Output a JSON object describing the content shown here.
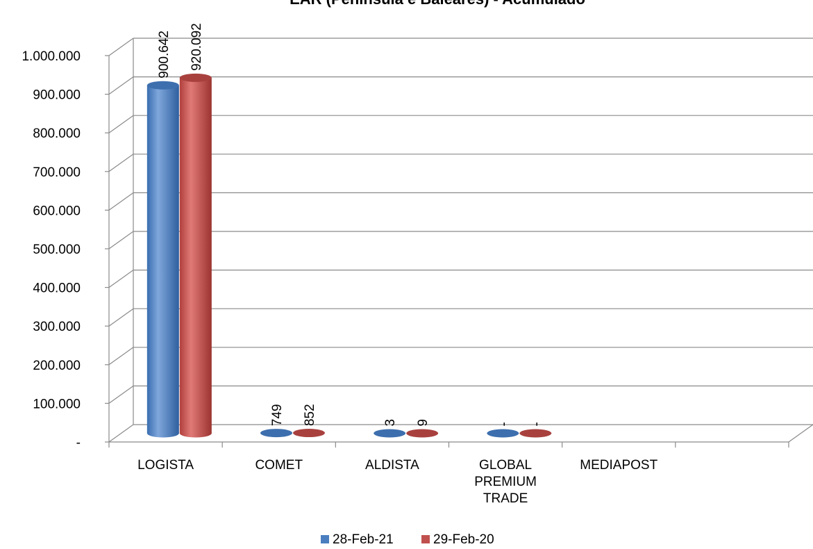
{
  "chart_data": {
    "type": "bar",
    "title": "EAR (Peninsula e Baleares) - Acumulado",
    "xlabel": "",
    "ylabel": "",
    "ylim": [
      0,
      1000000
    ],
    "y_tick_labels": [
      "-",
      "100.000",
      "200.000",
      "300.000",
      "400.000",
      "500.000",
      "600.000",
      "700.000",
      "800.000",
      "900.000",
      "1.000.000"
    ],
    "categories": [
      "LOGISTA",
      "COMET",
      "ALDISTA",
      "GLOBAL PREMIUM TRADE",
      "MEDIAPOST"
    ],
    "series": [
      {
        "name": "28-Feb-21",
        "color": "#4a7ebf",
        "values": [
          900642,
          749,
          3,
          0,
          null
        ],
        "labels": [
          "900.642",
          "749",
          "3",
          "-",
          ""
        ]
      },
      {
        "name": "29-Feb-20",
        "color": "#c0504d",
        "values": [
          920092,
          852,
          9,
          0,
          null
        ],
        "labels": [
          "920.092",
          "852",
          "9",
          "-",
          ""
        ]
      }
    ],
    "grid": true,
    "legend_position": "bottom"
  }
}
